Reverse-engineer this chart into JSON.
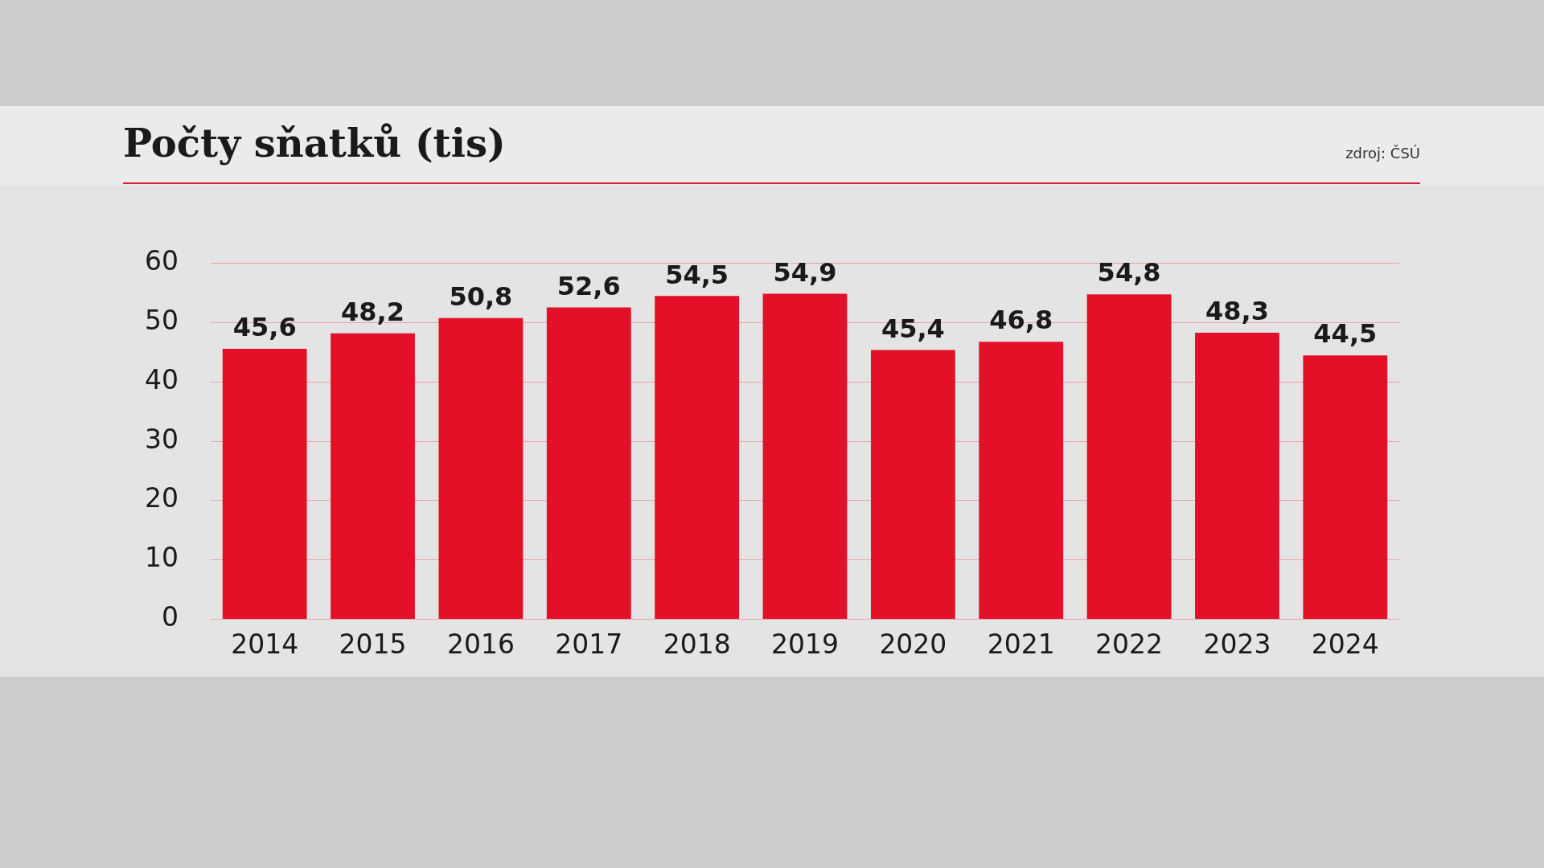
{
  "chart_data": {
    "type": "bar",
    "title": "Počty sňatků (tis)",
    "annotations": [
      "zdroj: ČSÚ"
    ],
    "categories": [
      "2014",
      "2015",
      "2016",
      "2017",
      "2018",
      "2019",
      "2020",
      "2021",
      "2022",
      "2023",
      "2024"
    ],
    "values": [
      45.6,
      48.2,
      50.8,
      52.6,
      54.5,
      54.9,
      45.4,
      46.8,
      54.8,
      48.3,
      44.5
    ],
    "value_labels": [
      "45,6",
      "48,2",
      "50,8",
      "52,6",
      "54,5",
      "54,9",
      "45,4",
      "46,8",
      "54,8",
      "48,3",
      "44,5"
    ],
    "color": "#e31027",
    "ylim": [
      0,
      60
    ],
    "yticks": [
      0,
      10,
      20,
      30,
      40,
      50,
      60
    ],
    "grid": "y",
    "legend": false
  }
}
